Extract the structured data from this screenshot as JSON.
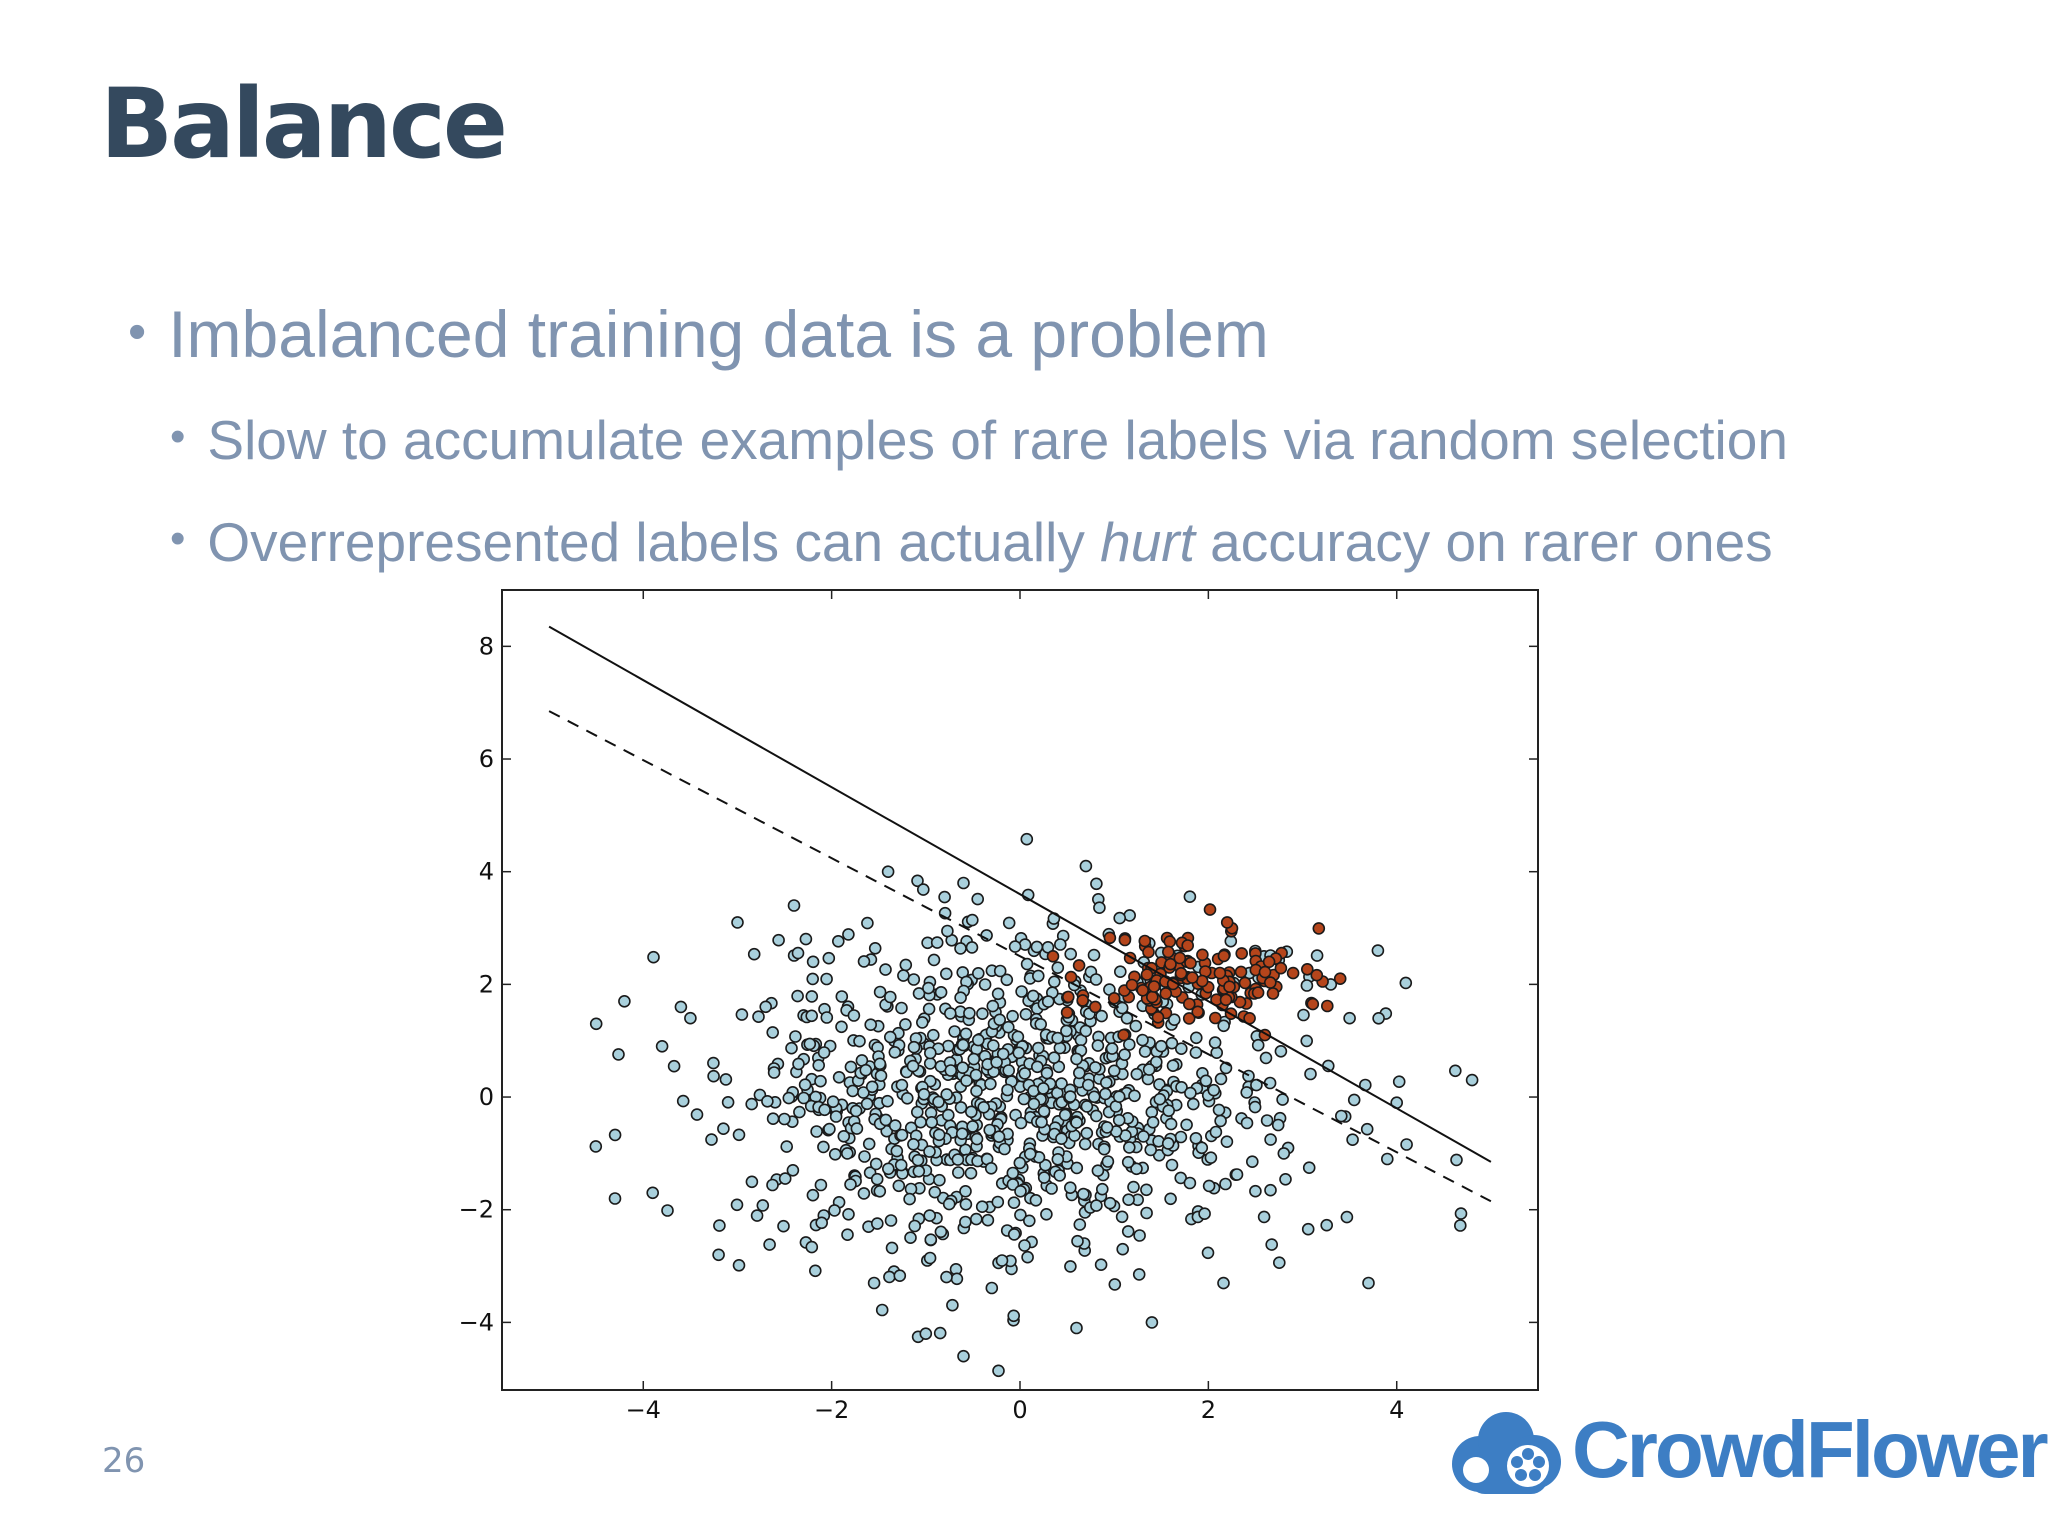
{
  "slide": {
    "title": "Balance",
    "page_number": "26",
    "bullets": [
      {
        "level": 1,
        "text": "Imbalanced training data is a problem"
      },
      {
        "level": 2,
        "text": "Slow to accumulate examples of rare labels via random selection"
      },
      {
        "level": 2,
        "pre": "Overrepresented labels can actually ",
        "em": "hurt",
        "post": " accuracy on rarer ones"
      }
    ],
    "bullet_glyph": "•"
  },
  "brand": {
    "name": "CrowdFlower",
    "color": "#3d7ec4",
    "icon": "flower-cloud-logo-icon"
  },
  "chart_data": {
    "type": "scatter",
    "title": "",
    "xlabel": "",
    "ylabel": "",
    "xlim": [
      -5.5,
      5.5
    ],
    "ylim": [
      -5.2,
      9.0
    ],
    "xticks": [
      -4,
      -2,
      0,
      2,
      4
    ],
    "yticks": [
      -4,
      -2,
      0,
      2,
      4,
      6,
      8
    ],
    "tick_labels_x": [
      "−4",
      "−2",
      "0",
      "2",
      "4"
    ],
    "tick_labels_y": [
      "−4",
      "−2",
      "0",
      "2",
      "4",
      "6",
      "8"
    ],
    "grid": false,
    "legend": "none",
    "series": [
      {
        "color": "#a9d0dc",
        "cluster": {
          "center": [
            0.0,
            0.0
          ],
          "std": 1.5,
          "count": 1000,
          "seed": 7
        },
        "points": [
          [
            -4.2,
            1.7
          ],
          [
            -4.5,
            1.3
          ],
          [
            -3.8,
            0.9
          ],
          [
            -3.6,
            1.6
          ],
          [
            -3.5,
            1.4
          ],
          [
            -4.3,
            -1.8
          ],
          [
            -3.9,
            -1.7
          ],
          [
            -3.2,
            -2.8
          ],
          [
            -3.0,
            3.1
          ],
          [
            -2.4,
            3.4
          ],
          [
            -0.6,
            3.8
          ],
          [
            0.7,
            4.1
          ],
          [
            -1.4,
            4.0
          ],
          [
            4.8,
            0.3
          ],
          [
            3.8,
            2.6
          ],
          [
            3.5,
            1.4
          ],
          [
            3.7,
            -3.3
          ],
          [
            -0.6,
            -4.6
          ],
          [
            -1.0,
            -4.2
          ],
          [
            0.6,
            -4.1
          ],
          [
            1.4,
            -4.0
          ],
          [
            4.0,
            -0.1
          ],
          [
            3.9,
            -1.1
          ],
          [
            3.3,
            2.0
          ]
        ]
      },
      {
        "color": "#b5451b",
        "cluster": {
          "center": [
            1.9,
            2.1
          ],
          "std": [
            0.55,
            0.45
          ],
          "count": 140,
          "seed": 11
        },
        "points": [
          [
            2.9,
            2.2
          ],
          [
            2.6,
            1.1
          ],
          [
            2.2,
            3.1
          ],
          [
            1.1,
            1.1
          ],
          [
            0.5,
            1.5
          ],
          [
            3.4,
            2.1
          ]
        ]
      }
    ],
    "lines": [
      {
        "style": "solid",
        "x": [
          -5.0,
          5.0
        ],
        "y": [
          8.35,
          -1.15
        ]
      },
      {
        "style": "dashed",
        "x": [
          -5.0,
          5.0
        ],
        "y": [
          6.85,
          -1.85
        ]
      }
    ]
  }
}
